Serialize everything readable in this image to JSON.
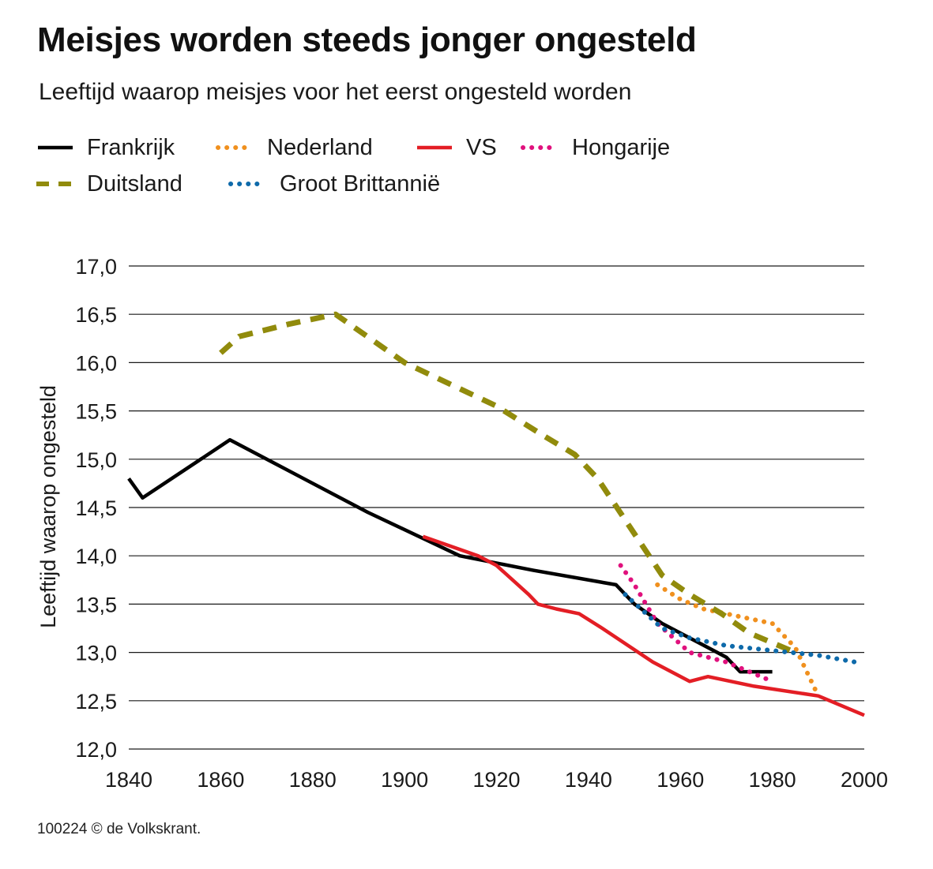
{
  "chart_data": {
    "type": "line",
    "title": "Meisjes worden steeds jonger ongesteld",
    "subtitle": "Leeftijd waarop meisjes voor het eerst ongesteld worden",
    "xlabel": "",
    "ylabel": "Leeftijd waarop ongesteld",
    "xlim": [
      1840,
      2000
    ],
    "ylim": [
      12.0,
      17.0
    ],
    "x_ticks": [
      {
        "value": 1840,
        "label": "1840"
      },
      {
        "value": 1860,
        "label": "1860"
      },
      {
        "value": 1880,
        "label": "1880"
      },
      {
        "value": 1900,
        "label": "1900"
      },
      {
        "value": 1920,
        "label": "1920"
      },
      {
        "value": 1940,
        "label": "1940"
      },
      {
        "value": 1960,
        "label": "1960"
      },
      {
        "value": 1980,
        "label": "1980"
      },
      {
        "value": 2000,
        "label": "2000"
      }
    ],
    "y_ticks": [
      {
        "value": 12.0,
        "label": "12,0"
      },
      {
        "value": 12.5,
        "label": "12,5"
      },
      {
        "value": 13.0,
        "label": "13,0"
      },
      {
        "value": 13.5,
        "label": "13,5"
      },
      {
        "value": 14.0,
        "label": "14,0"
      },
      {
        "value": 14.5,
        "label": "14,5"
      },
      {
        "value": 15.0,
        "label": "15,0"
      },
      {
        "value": 15.5,
        "label": "15,5"
      },
      {
        "value": 16.0,
        "label": "16,0"
      },
      {
        "value": 16.5,
        "label": "16,5"
      },
      {
        "value": 17.0,
        "label": "17,0"
      }
    ],
    "grid": true,
    "legend_position": "top",
    "series": [
      {
        "name": "Frankrijk",
        "key": "frankrijk",
        "color": "#000000",
        "style": "solid",
        "points": [
          [
            1840,
            14.8
          ],
          [
            1843,
            14.6
          ],
          [
            1862,
            15.2
          ],
          [
            1872,
            14.95
          ],
          [
            1892,
            14.45
          ],
          [
            1912,
            14.0
          ],
          [
            1928,
            13.85
          ],
          [
            1946,
            13.7
          ],
          [
            1950,
            13.5
          ],
          [
            1956,
            13.3
          ],
          [
            1962,
            13.15
          ],
          [
            1970,
            12.95
          ],
          [
            1973,
            12.8
          ],
          [
            1980,
            12.8
          ]
        ]
      },
      {
        "name": "Nederland",
        "key": "nederland",
        "color": "#f0901e",
        "style": "dotted",
        "points": [
          [
            1955,
            13.7
          ],
          [
            1960,
            13.55
          ],
          [
            1965,
            13.45
          ],
          [
            1970,
            13.4
          ],
          [
            1975,
            13.35
          ],
          [
            1980,
            13.3
          ],
          [
            1985,
            13.05
          ],
          [
            1990,
            12.55
          ]
        ]
      },
      {
        "name": "VS",
        "key": "vs",
        "color": "#e31e25",
        "style": "solid",
        "points": [
          [
            1904,
            14.2
          ],
          [
            1910,
            14.1
          ],
          [
            1916,
            14.0
          ],
          [
            1920,
            13.9
          ],
          [
            1927,
            13.6
          ],
          [
            1929,
            13.5
          ],
          [
            1933,
            13.45
          ],
          [
            1938,
            13.4
          ],
          [
            1943,
            13.25
          ],
          [
            1954,
            12.9
          ],
          [
            1962,
            12.7
          ],
          [
            1966,
            12.75
          ],
          [
            1976,
            12.65
          ],
          [
            1990,
            12.55
          ],
          [
            2000,
            12.35
          ]
        ]
      },
      {
        "name": "Hongarije",
        "key": "hongarije",
        "color": "#e0117d",
        "style": "dotted",
        "points": [
          [
            1947,
            13.9
          ],
          [
            1950,
            13.7
          ],
          [
            1955,
            13.3
          ],
          [
            1962,
            13.0
          ],
          [
            1970,
            12.9
          ],
          [
            1980,
            12.7
          ]
        ]
      },
      {
        "name": "Duitsland",
        "key": "duitsland",
        "color": "#918b0c",
        "style": "dashed",
        "points": [
          [
            1860,
            16.1
          ],
          [
            1864,
            16.27
          ],
          [
            1875,
            16.4
          ],
          [
            1885,
            16.5
          ],
          [
            1900,
            16.0
          ],
          [
            1920,
            15.55
          ],
          [
            1930,
            15.25
          ],
          [
            1937,
            15.05
          ],
          [
            1942,
            14.8
          ],
          [
            1949,
            14.3
          ],
          [
            1956,
            13.8
          ],
          [
            1962,
            13.6
          ],
          [
            1969,
            13.4
          ],
          [
            1975,
            13.2
          ],
          [
            1985,
            13.0
          ]
        ]
      },
      {
        "name": "Groot Brittannië",
        "key": "groot_brittannie",
        "color": "#0e6aaa",
        "style": "dotted",
        "points": [
          [
            1948,
            13.6
          ],
          [
            1956,
            13.25
          ],
          [
            1962,
            13.15
          ],
          [
            1970,
            13.07
          ],
          [
            1980,
            13.02
          ],
          [
            1990,
            12.97
          ],
          [
            1998,
            12.9
          ]
        ]
      }
    ]
  },
  "credit": "100224 © de Volkskrant."
}
